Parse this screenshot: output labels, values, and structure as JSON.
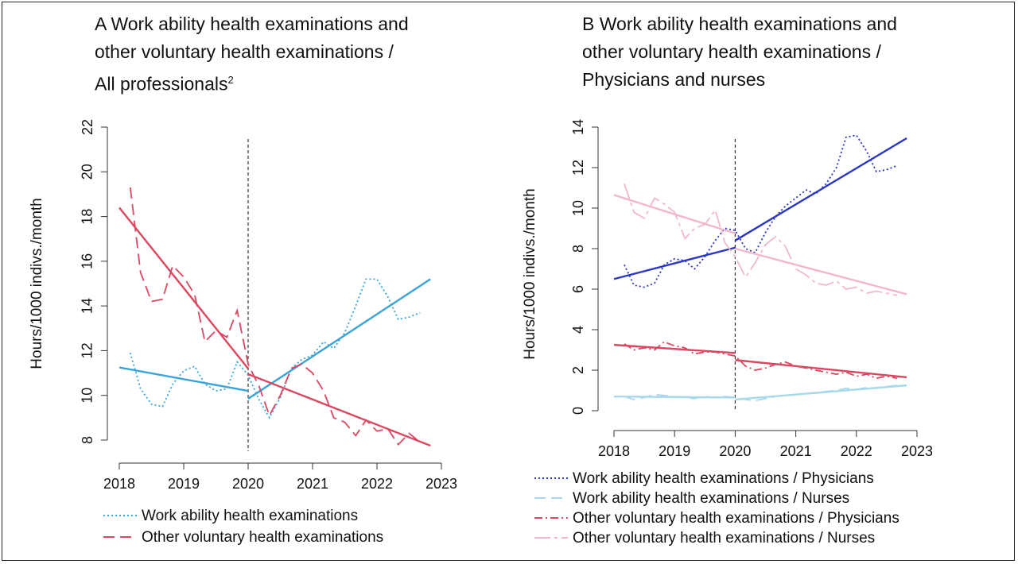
{
  "panels": [
    {
      "title_lines": [
        "A  Work ability health examinations and",
        "other voluntary health examinations /",
        "All professionals"
      ],
      "title_sup": "2",
      "ylabel": "Hours/1000 indivs./month",
      "yticks": [
        8,
        10,
        12,
        14,
        16,
        18,
        20,
        22
      ],
      "xticks": [
        2018,
        2019,
        2020,
        2021,
        2022,
        2023
      ],
      "legend": [
        "Work ability health examinations",
        "Other voluntary health examinations"
      ]
    },
    {
      "title_lines": [
        "B  Work ability health examinations and",
        "other voluntary health examinations /",
        "Physicians and nurses"
      ],
      "ylabel": "Hours/1000 indivs./month",
      "yticks": [
        0,
        2,
        4,
        6,
        8,
        10,
        12,
        14
      ],
      "xticks": [
        2018,
        2019,
        2020,
        2021,
        2022,
        2023
      ],
      "legend": [
        "Work ability health examinations / Physicians",
        "Work ability health examinations / Nurses",
        "Other voluntary health examinations / Physicians",
        "Other voluntary health examinations / Nurses"
      ]
    }
  ],
  "chart_data": [
    {
      "type": "line",
      "panel": "A",
      "xlim": [
        2018,
        2023
      ],
      "ylim": [
        8,
        22
      ],
      "intervention_x": 2020,
      "series": [
        {
          "name": "Work ability health examinations",
          "color": "#3ca3d9",
          "dash": "dotted",
          "observed": {
            "x": [
              2018.17,
              2018.33,
              2018.5,
              2018.67,
              2018.83,
              2019.0,
              2019.17,
              2019.33,
              2019.5,
              2019.67,
              2019.83,
              2020.0,
              2020.17,
              2020.33,
              2020.5,
              2020.67,
              2020.83,
              2021.0,
              2021.17,
              2021.33,
              2021.5,
              2021.67,
              2021.83,
              2022.0,
              2022.17,
              2022.33,
              2022.5,
              2022.67
            ],
            "y": [
              11.9,
              10.3,
              9.6,
              9.5,
              10.5,
              11.1,
              11.3,
              10.5,
              10.2,
              10.3,
              11.5,
              10.9,
              9.8,
              9.0,
              9.9,
              11.2,
              11.6,
              11.8,
              12.4,
              12.1,
              12.8,
              14.0,
              15.2,
              15.2,
              14.4,
              13.4,
              13.5,
              13.7
            ]
          },
          "trend": [
            {
              "x": [
                2018.0,
                2020.0
              ],
              "y": [
                11.25,
                10.2
              ]
            },
            {
              "x": [
                2020.0,
                2022.83
              ],
              "y": [
                9.85,
                15.2
              ]
            }
          ]
        },
        {
          "name": "Other voluntary health examinations",
          "color": "#d94760",
          "dash": "dashed",
          "observed": {
            "x": [
              2018.17,
              2018.33,
              2018.5,
              2018.67,
              2018.83,
              2019.0,
              2019.17,
              2019.33,
              2019.5,
              2019.67,
              2019.83,
              2020.0,
              2020.17,
              2020.33,
              2020.5,
              2020.67,
              2020.83,
              2021.0,
              2021.17,
              2021.33,
              2021.5,
              2021.67,
              2021.83,
              2022.0,
              2022.17,
              2022.33,
              2022.5,
              2022.67
            ],
            "y": [
              19.3,
              15.5,
              14.2,
              14.3,
              15.8,
              15.3,
              14.5,
              12.4,
              12.9,
              12.6,
              13.8,
              11.4,
              10.4,
              9.1,
              10.0,
              11.2,
              11.4,
              11.0,
              10.2,
              9.0,
              8.8,
              8.2,
              8.9,
              8.4,
              8.5,
              7.8,
              8.3,
              7.9
            ]
          },
          "trend": [
            {
              "x": [
                2018.0,
                2020.0
              ],
              "y": [
                18.4,
                11.2
              ]
            },
            {
              "x": [
                2020.0,
                2022.83
              ],
              "y": [
                10.95,
                7.75
              ]
            }
          ]
        }
      ]
    },
    {
      "type": "line",
      "panel": "B",
      "xlim": [
        2018,
        2023
      ],
      "ylim": [
        0,
        14
      ],
      "intervention_x": 2020,
      "series": [
        {
          "name": "Work ability health examinations / Physicians",
          "color": "#2a36c4",
          "dash": "dotted",
          "observed": {
            "x": [
              2018.17,
              2018.33,
              2018.5,
              2018.67,
              2018.83,
              2019.0,
              2019.17,
              2019.33,
              2019.5,
              2019.67,
              2019.83,
              2020.0,
              2020.17,
              2020.33,
              2020.5,
              2020.67,
              2020.83,
              2021.0,
              2021.17,
              2021.33,
              2021.5,
              2021.67,
              2021.83,
              2022.0,
              2022.17,
              2022.33,
              2022.5,
              2022.67
            ],
            "y": [
              7.2,
              6.2,
              6.1,
              6.3,
              7.2,
              7.5,
              7.4,
              7.0,
              7.6,
              8.4,
              9.0,
              8.9,
              8.0,
              7.8,
              8.8,
              9.6,
              10.1,
              10.5,
              10.9,
              10.7,
              11.2,
              12.0,
              13.5,
              13.6,
              12.8,
              11.8,
              11.9,
              12.1
            ]
          },
          "trend": [
            {
              "x": [
                2018.0,
                2020.0
              ],
              "y": [
                6.5,
                8.05
              ]
            },
            {
              "x": [
                2020.0,
                2022.83
              ],
              "y": [
                8.4,
                13.45
              ]
            }
          ]
        },
        {
          "name": "Work ability health examinations / Nurses",
          "color": "#a8d8ea",
          "dash": "dashed",
          "observed": {
            "x": [
              2018.17,
              2018.33,
              2018.5,
              2018.67,
              2018.83,
              2019.0,
              2019.17,
              2019.33,
              2019.5,
              2019.67,
              2019.83,
              2020.0,
              2020.17,
              2020.33,
              2020.5,
              2020.67,
              2020.83,
              2021.0,
              2021.17,
              2021.33,
              2021.5,
              2021.67,
              2021.83,
              2022.0,
              2022.17,
              2022.33,
              2022.5,
              2022.67
            ],
            "y": [
              0.7,
              0.55,
              0.65,
              0.8,
              0.75,
              0.7,
              0.65,
              0.6,
              0.7,
              0.65,
              0.7,
              0.65,
              0.55,
              0.5,
              0.6,
              0.7,
              0.75,
              0.8,
              0.85,
              0.9,
              0.95,
              1.0,
              1.1,
              1.05,
              1.15,
              1.1,
              1.2,
              1.25
            ]
          },
          "trend": [
            {
              "x": [
                2018.0,
                2020.0
              ],
              "y": [
                0.7,
                0.65
              ]
            },
            {
              "x": [
                2020.0,
                2022.83
              ],
              "y": [
                0.55,
                1.25
              ]
            }
          ]
        },
        {
          "name": "Other voluntary health examinations / Physicians",
          "color": "#d94760",
          "dash": "dashdot",
          "observed": {
            "x": [
              2018.17,
              2018.33,
              2018.5,
              2018.67,
              2018.83,
              2019.0,
              2019.17,
              2019.33,
              2019.5,
              2019.67,
              2019.83,
              2020.0,
              2020.17,
              2020.33,
              2020.5,
              2020.67,
              2020.83,
              2021.0,
              2021.17,
              2021.33,
              2021.5,
              2021.67,
              2021.83,
              2022.0,
              2022.17,
              2022.33,
              2022.5,
              2022.67
            ],
            "y": [
              3.3,
              3.0,
              3.1,
              3.0,
              3.4,
              3.2,
              3.1,
              2.8,
              2.9,
              2.9,
              2.8,
              2.7,
              2.2,
              2.0,
              2.1,
              2.3,
              2.4,
              2.2,
              2.1,
              2.0,
              1.9,
              1.8,
              1.9,
              1.7,
              1.8,
              1.6,
              1.7,
              1.6
            ]
          },
          "trend": [
            {
              "x": [
                2018.0,
                2020.0
              ],
              "y": [
                3.25,
                2.85
              ]
            },
            {
              "x": [
                2020.0,
                2022.83
              ],
              "y": [
                2.5,
                1.65
              ]
            }
          ]
        },
        {
          "name": "Other voluntary health examinations / Nurses",
          "color": "#f2b8c9",
          "dash": "longdash",
          "observed": {
            "x": [
              2018.17,
              2018.33,
              2018.5,
              2018.67,
              2018.83,
              2019.0,
              2019.17,
              2019.33,
              2019.5,
              2019.67,
              2019.83,
              2020.0,
              2020.17,
              2020.33,
              2020.5,
              2020.67,
              2020.83,
              2021.0,
              2021.17,
              2021.33,
              2021.5,
              2021.67,
              2021.83,
              2022.0,
              2022.17,
              2022.33,
              2022.5,
              2022.67
            ],
            "y": [
              11.2,
              9.8,
              9.5,
              10.5,
              10.2,
              9.8,
              8.5,
              9.0,
              9.2,
              9.9,
              8.3,
              7.6,
              6.6,
              7.3,
              8.2,
              8.6,
              8.1,
              7.0,
              6.7,
              6.3,
              6.2,
              6.4,
              6.0,
              6.1,
              5.8,
              5.9,
              5.8,
              5.7
            ]
          },
          "trend": [
            {
              "x": [
                2018.0,
                2020.0
              ],
              "y": [
                10.65,
                8.75
              ]
            },
            {
              "x": [
                2020.0,
                2022.83
              ],
              "y": [
                8.0,
                5.75
              ]
            }
          ]
        }
      ]
    }
  ]
}
